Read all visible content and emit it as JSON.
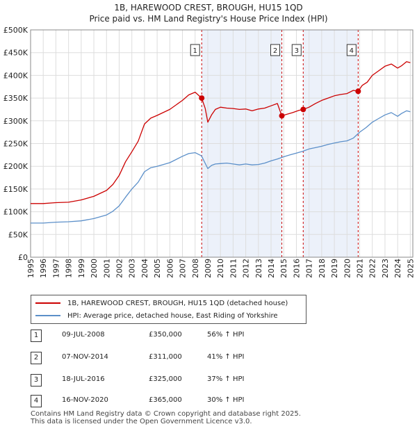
{
  "header": {
    "title": "1B, HAREWOOD CREST, BROUGH, HU15 1QD",
    "subtitle": "Price paid vs. HM Land Registry's House Price Index (HPI)"
  },
  "chart_data": {
    "type": "line",
    "xlim": [
      1995,
      2025.2
    ],
    "ylim": [
      0,
      500000
    ],
    "yticks": [
      0,
      50000,
      100000,
      150000,
      200000,
      250000,
      300000,
      350000,
      400000,
      450000,
      500000
    ],
    "ytick_labels": [
      "£0",
      "£50K",
      "£100K",
      "£150K",
      "£200K",
      "£250K",
      "£300K",
      "£350K",
      "£400K",
      "£450K",
      "£500K"
    ],
    "xticks": [
      1995,
      1996,
      1997,
      1998,
      1999,
      2000,
      2001,
      2002,
      2003,
      2004,
      2005,
      2006,
      2007,
      2008,
      2009,
      2010,
      2011,
      2012,
      2013,
      2014,
      2015,
      2016,
      2017,
      2018,
      2019,
      2020,
      2021,
      2022,
      2023,
      2024,
      2025
    ],
    "xtick_labels": [
      "1995",
      "1996",
      "1997",
      "1998",
      "1999",
      "2000",
      "2001",
      "2002",
      "2003",
      "2004",
      "2005",
      "2006",
      "2007",
      "2008",
      "2009",
      "2010",
      "2011",
      "2012",
      "2013",
      "2014",
      "2015",
      "2016",
      "2017",
      "2018",
      "2019",
      "2020",
      "2021",
      "2022",
      "2023",
      "2024",
      "2025"
    ],
    "grid": true,
    "shaded_periods": [
      [
        2008.52,
        2014.85
      ],
      [
        2016.54,
        2020.88
      ]
    ],
    "series": [
      {
        "name": "1B, HAREWOOD CREST, BROUGH, HU15 1QD (detached house)",
        "color": "#cc0000",
        "x": [
          1995,
          1996,
          1997,
          1998,
          1999,
          2000,
          2001,
          2001.5,
          2002,
          2002.5,
          2003,
          2003.5,
          2004,
          2004.5,
          2005,
          2006,
          2007,
          2007.5,
          2008,
          2008.52,
          2008.8,
          2009.0,
          2009.3,
          2009.6,
          2010,
          2010.5,
          2011,
          2011.5,
          2012,
          2012.5,
          2013,
          2013.5,
          2014,
          2014.5,
          2014.85,
          2015.2,
          2015.7,
          2016.2,
          2016.54,
          2017,
          2017.5,
          2018,
          2018.5,
          2019,
          2019.5,
          2020,
          2020.5,
          2020.88,
          2021.2,
          2021.6,
          2022,
          2022.5,
          2023,
          2023.5,
          2024,
          2024.3,
          2024.7,
          2025
        ],
        "values": [
          118000,
          118000,
          120000,
          121000,
          126000,
          134000,
          147000,
          160000,
          180000,
          210000,
          232000,
          255000,
          293000,
          306000,
          312000,
          325000,
          345000,
          357000,
          363000,
          350000,
          327000,
          297000,
          313000,
          325000,
          330000,
          328000,
          327000,
          325000,
          326000,
          322000,
          326000,
          328000,
          333000,
          338000,
          311000,
          314000,
          318000,
          323000,
          325000,
          330000,
          338000,
          345000,
          350000,
          355000,
          358000,
          360000,
          367000,
          365000,
          378000,
          385000,
          400000,
          410000,
          420000,
          425000,
          416000,
          421000,
          430000,
          428000
        ]
      },
      {
        "name": "HPI: Average price, detached house, East Riding of Yorkshire",
        "color": "#5b8fc9",
        "x": [
          1995,
          1996,
          1997,
          1998,
          1999,
          2000,
          2001,
          2001.5,
          2002,
          2002.5,
          2003,
          2003.5,
          2004,
          2004.5,
          2005,
          2006,
          2007,
          2007.5,
          2008,
          2008.5,
          2009.0,
          2009.3,
          2009.6,
          2010,
          2010.5,
          2011,
          2011.5,
          2012,
          2012.5,
          2013,
          2013.5,
          2014,
          2014.5,
          2015,
          2015.5,
          2016,
          2016.5,
          2017,
          2017.5,
          2018,
          2018.5,
          2019,
          2019.5,
          2020,
          2020.5,
          2021,
          2021.5,
          2022,
          2022.5,
          2023,
          2023.5,
          2024,
          2024.3,
          2024.7,
          2025
        ],
        "values": [
          75000,
          75000,
          77000,
          78000,
          80000,
          85000,
          93000,
          101000,
          113000,
          132000,
          150000,
          165000,
          188000,
          197000,
          200000,
          208000,
          222000,
          228000,
          230000,
          223000,
          195000,
          202000,
          205000,
          206000,
          207000,
          205000,
          203000,
          205000,
          203000,
          204000,
          207000,
          212000,
          216000,
          221000,
          225000,
          229000,
          233000,
          238000,
          241000,
          244000,
          248000,
          251000,
          254000,
          256000,
          262000,
          275000,
          285000,
          297000,
          305000,
          313000,
          318000,
          310000,
          316000,
          322000,
          320000
        ]
      }
    ],
    "sales": [
      {
        "label": "1",
        "x": 2008.52,
        "value": 350000
      },
      {
        "label": "2",
        "x": 2014.85,
        "value": 311000
      },
      {
        "label": "3",
        "x": 2016.54,
        "value": 325000
      },
      {
        "label": "4",
        "x": 2020.88,
        "value": 365000
      }
    ]
  },
  "legend": {
    "property": "1B, HAREWOOD CREST, BROUGH, HU15 1QD (detached house)",
    "hpi": "HPI: Average price, detached house, East Riding of Yorkshire"
  },
  "sales_table": [
    {
      "num": "1",
      "date": "09-JUL-2008",
      "price": "£350,000",
      "hpi": "56% ↑ HPI"
    },
    {
      "num": "2",
      "date": "07-NOV-2014",
      "price": "£311,000",
      "hpi": "41% ↑ HPI"
    },
    {
      "num": "3",
      "date": "18-JUL-2016",
      "price": "£325,000",
      "hpi": "37% ↑ HPI"
    },
    {
      "num": "4",
      "date": "16-NOV-2020",
      "price": "£365,000",
      "hpi": "30% ↑ HPI"
    }
  ],
  "footer": {
    "line1": "Contains HM Land Registry data © Crown copyright and database right 2025.",
    "line2": "This data is licensed under the Open Government Licence v3.0."
  }
}
